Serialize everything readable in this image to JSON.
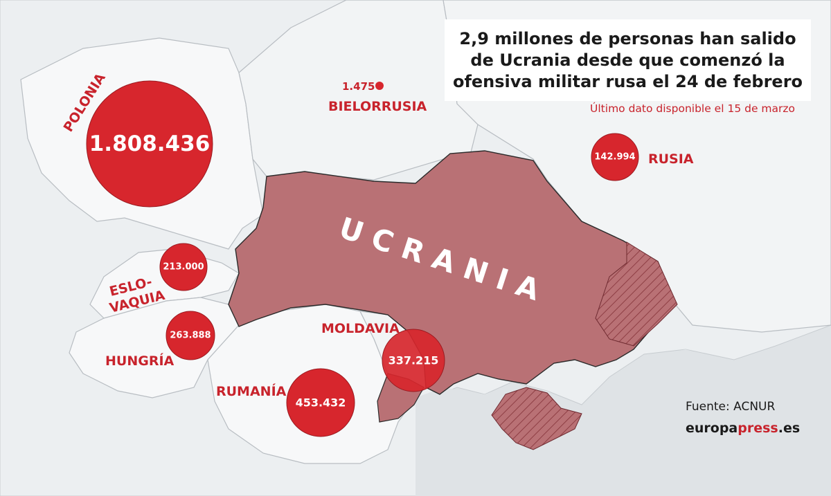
{
  "title": "2,9 millones de personas han salido\nde Ucrania desde que comenzó la\nofensiva militar rusa el 24 de febrero",
  "subtitle": "Último dato disponible el 15 de marzo",
  "source": "Fuente: ACNUR",
  "brand": {
    "part1": "europa",
    "part2": "press",
    "part3": ".es"
  },
  "colors": {
    "accent": "#c8232c",
    "ukraine_fill": "#b97175",
    "land": "#f5f6f7",
    "water": "#dfe3e6",
    "bubble": "#d7262d"
  },
  "countries": {
    "ukraine": "U C R A N I A",
    "poland": "POLONIA",
    "belarus": "BIELORRUSIA",
    "russia": "RUSIA",
    "slovakia_line1": "ESLO-",
    "slovakia_line2": "VAQUIA",
    "hungary": "HUNGRÍA",
    "romania": "RUMANÍA",
    "moldova": "MOLDAVIA"
  },
  "refugees": {
    "poland": "1.808.436",
    "belarus": "1.475",
    "russia": "142.994",
    "slovakia": "213.000",
    "hungary": "263.888",
    "romania": "453.432",
    "moldova": "337.215"
  }
}
